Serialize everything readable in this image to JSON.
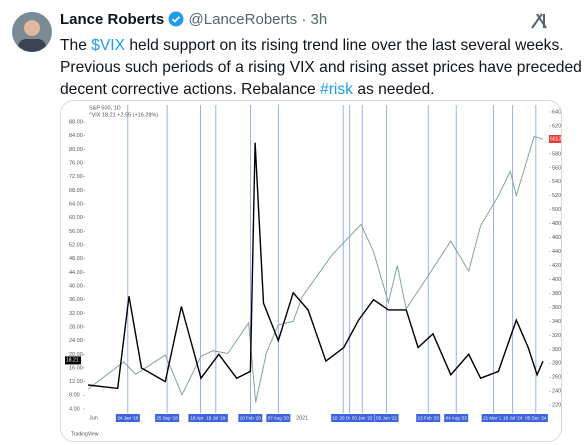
{
  "header": {
    "name": "Lance Roberts",
    "handle": "@LanceRoberts",
    "time": "3h"
  },
  "tweet": {
    "lines": [
      [
        "The ",
        "$VIX",
        " held support on its rising trend line over the last several weeks."
      ],
      [
        "Previous such periods of a rising VIX and rising asset prices have preceded"
      ],
      [
        "decent corrective actions. Rebalance ",
        "#risk",
        " as needed."
      ]
    ]
  },
  "chart_data": {
    "type": "line",
    "subtitle": "S&P 500, 1D",
    "legend_text": "^VIX  18.21  +2.55 (+16.28%)",
    "footer": "TradingView",
    "xlim": [
      2017.35,
      2025.1
    ],
    "x_start_label": "Jun",
    "x_year_label": {
      "value": 2021.0,
      "label": "2021"
    },
    "ylim": [
      0,
      93
    ],
    "yticks": [
      {
        "value": 88,
        "label": "88.00"
      },
      {
        "value": 84,
        "label": "84.00"
      },
      {
        "value": 80,
        "label": "80.00"
      },
      {
        "value": 76,
        "label": "76.00"
      },
      {
        "value": 72,
        "label": "72.00"
      },
      {
        "value": 68,
        "label": "68.00"
      },
      {
        "value": 64,
        "label": "64.00"
      },
      {
        "value": 60,
        "label": "60.00"
      },
      {
        "value": 56,
        "label": "56.00"
      },
      {
        "value": 52,
        "label": "52.00"
      },
      {
        "value": 48,
        "label": "48.00"
      },
      {
        "value": 44,
        "label": "44.00"
      },
      {
        "value": 40,
        "label": "40.00"
      },
      {
        "value": 36,
        "label": "36.00"
      },
      {
        "value": 32,
        "label": "32.00"
      },
      {
        "value": 28,
        "label": "28.00"
      },
      {
        "value": 24,
        "label": "24.00"
      },
      {
        "value": 20,
        "label": "20.00"
      },
      {
        "value": 16,
        "label": "16.00"
      },
      {
        "value": 12,
        "label": "12.00"
      },
      {
        "value": 8,
        "label": "8.00"
      },
      {
        "value": 4,
        "label": "4.00"
      }
    ],
    "y2lim": [
      1950,
      6500
    ],
    "y2ticks": [
      {
        "value": 6400,
        "label": "6400.00"
      },
      {
        "value": 6200,
        "label": "6200.00"
      },
      {
        "value": 6000,
        "label": "6000.00"
      },
      {
        "value": 5800,
        "label": "5800.00"
      },
      {
        "value": 5600,
        "label": "5600.00"
      },
      {
        "value": 5400,
        "label": "5400.00"
      },
      {
        "value": 5200,
        "label": "5200.00"
      },
      {
        "value": 5000,
        "label": "5000.00"
      },
      {
        "value": 4800,
        "label": "4800.00"
      },
      {
        "value": 4600,
        "label": "4600.00"
      },
      {
        "value": 4400,
        "label": "4400.00"
      },
      {
        "value": 4200,
        "label": "4200.00"
      },
      {
        "value": 4000,
        "label": "4000.00"
      },
      {
        "value": 3800,
        "label": "3800.00"
      },
      {
        "value": 3600,
        "label": "3600.00"
      },
      {
        "value": 3400,
        "label": "3400.00"
      },
      {
        "value": 3200,
        "label": "3200.00"
      },
      {
        "value": 3000,
        "label": "3000.00"
      },
      {
        "value": 2800,
        "label": "2800.00"
      },
      {
        "value": 2600,
        "label": "2600.00"
      },
      {
        "value": 2400,
        "label": "2400.00"
      },
      {
        "value": 2200,
        "label": "2200.00"
      }
    ],
    "markers": [
      {
        "x": 2018.07,
        "label": "24 Jan '18"
      },
      {
        "x": 2018.73,
        "label": "25 Sep '18"
      },
      {
        "x": 2019.29,
        "label": "18 Apr '19"
      },
      {
        "x": 2019.55,
        "label": "19 Jul '19"
      },
      {
        "x": 2020.13,
        "label": "18 Feb '20"
      },
      {
        "x": 2020.6,
        "label": "07 Aug '20"
      },
      {
        "x": 2021.69,
        "label": "10 Sep '21"
      },
      {
        "x": 2021.8,
        "label": "20 Oct '21"
      },
      {
        "x": 2022.01,
        "label": "03 Jan '22"
      },
      {
        "x": 2022.42,
        "label": "02 Jun '22"
      },
      {
        "x": 2023.12,
        "label": "13 Feb '23"
      },
      {
        "x": 2023.59,
        "label": "04 Aug '23"
      },
      {
        "x": 2024.22,
        "label": "21 Mar '24"
      },
      {
        "x": 2024.54,
        "label": "18 Jul '24"
      },
      {
        "x": 2024.93,
        "label": "05 Dec '24"
      }
    ],
    "series": [
      {
        "name": "S&P 500",
        "color": "#7fa894",
        "axis": "y2",
        "last_value": 6013.13,
        "x": [
          2017.4,
          2018.0,
          2018.2,
          2018.7,
          2018.98,
          2019.3,
          2019.5,
          2019.75,
          2020.1,
          2020.22,
          2020.4,
          2020.6,
          2020.85,
          2021.0,
          2021.5,
          2021.99,
          2022.2,
          2022.45,
          2022.6,
          2022.75,
          2023.0,
          2023.5,
          2023.8,
          2024.0,
          2024.3,
          2024.5,
          2024.6,
          2024.9,
          2025.05
        ],
        "values": [
          2430,
          2820,
          2640,
          2920,
          2350,
          2900,
          2980,
          2940,
          3380,
          2240,
          2950,
          3350,
          3400,
          3750,
          4350,
          4790,
          4400,
          3670,
          4200,
          3580,
          3900,
          4550,
          4120,
          4770,
          5200,
          5550,
          5200,
          6050,
          6010
        ]
      },
      {
        "name": "VIX",
        "color": "#000000",
        "last_value": 18.21,
        "x": [
          2017.4,
          2017.9,
          2018.09,
          2018.3,
          2018.7,
          2018.97,
          2019.3,
          2019.6,
          2019.9,
          2020.13,
          2020.21,
          2020.35,
          2020.6,
          2020.85,
          2021.1,
          2021.4,
          2021.7,
          2021.95,
          2022.2,
          2022.45,
          2022.75,
          2022.95,
          2023.2,
          2023.5,
          2023.8,
          2024.0,
          2024.3,
          2024.6,
          2024.8,
          2024.95,
          2025.05
        ],
        "values": [
          11,
          10,
          37,
          16,
          12,
          34,
          13,
          20,
          13,
          15,
          82,
          35,
          24,
          38,
          33,
          18,
          22,
          30,
          36,
          33,
          33,
          22,
          26,
          14,
          20,
          13,
          15,
          30,
          22,
          14,
          18
        ]
      }
    ]
  }
}
